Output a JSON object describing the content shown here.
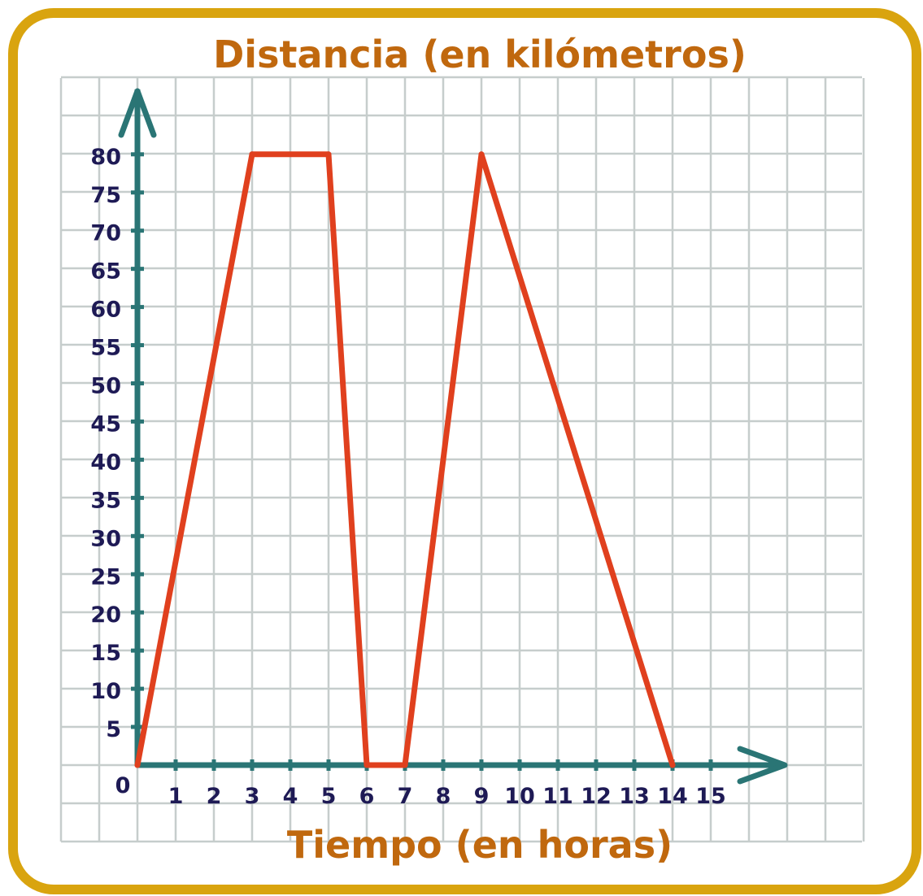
{
  "chart_data": {
    "type": "line",
    "title": "Distancia (en kilómetros)",
    "xlabel": "Tiempo (en horas)",
    "ylabel": "",
    "origin_label": "0",
    "x_ticks": [
      "1",
      "2",
      "3",
      "4",
      "5",
      "6",
      "7",
      "8",
      "9",
      "10",
      "11",
      "12",
      "13",
      "14",
      "15"
    ],
    "y_ticks": [
      "5",
      "10",
      "15",
      "20",
      "25",
      "30",
      "35",
      "40",
      "45",
      "50",
      "55",
      "60",
      "65",
      "70",
      "75",
      "80"
    ],
    "xlim": [
      0,
      15
    ],
    "ylim": [
      0,
      80
    ],
    "grid": true,
    "series": [
      {
        "x": [
          0,
          3,
          5,
          6,
          7,
          9,
          14
        ],
        "y": [
          0,
          80,
          80,
          0,
          0,
          80,
          0
        ]
      }
    ],
    "colors": {
      "line": "#e0401e",
      "axes": "#2a7575",
      "grid": "#c6cdcc",
      "frame": "#d9a40f",
      "title": "#c0680e",
      "ticks": "#1e1a55"
    }
  }
}
